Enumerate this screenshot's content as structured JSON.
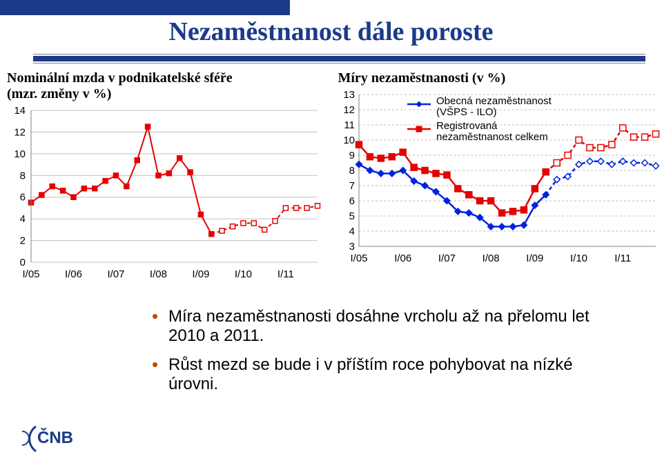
{
  "title": "Nezaměstnanost dále poroste",
  "left_chart": {
    "title_line1": "Nominální mzda v podnikatelské sféře",
    "title_line2": "(mzr. změny v %)",
    "type": "line",
    "background_color": "#ffffff",
    "grid_color": "#c0c0c0",
    "axis_color": "#808080",
    "series_color": "#e40000",
    "series_fill": "#ffffff",
    "marker_color": "#e40000",
    "marker_dashed_color": "#e40000",
    "ylim": [
      0,
      14
    ],
    "ytick_step": 2,
    "yticks": [
      0,
      2,
      4,
      6,
      8,
      10,
      12,
      14
    ],
    "x_labels": [
      "I/05",
      "I/06",
      "I/07",
      "I/08",
      "I/09",
      "I/10",
      "I/11"
    ],
    "solid_count": 18,
    "values": [
      5.5,
      6.2,
      7.0,
      6.6,
      6.0,
      6.8,
      6.8,
      7.5,
      8.0,
      7.0,
      9.4,
      12.5,
      8.0,
      8.2,
      9.6,
      8.3,
      4.4,
      2.6,
      2.9,
      3.3,
      3.6,
      3.6,
      3.0,
      3.8,
      5.0,
      5.0,
      5.0,
      5.2
    ],
    "label_fontsize": 15,
    "title_fontsize": 20,
    "line_width": 2,
    "marker_size": 3.5
  },
  "right_chart": {
    "title": "Míry nezaměstnanosti (v %)",
    "type": "line",
    "background_color": "#ffffff",
    "grid_color": "#c0c0c0",
    "axis_color": "#808080",
    "ylim": [
      3,
      13
    ],
    "ytick_step": 1,
    "yticks": [
      3,
      4,
      5,
      6,
      7,
      8,
      9,
      10,
      11,
      12,
      13
    ],
    "x_labels": [
      "I/05",
      "I/06",
      "I/07",
      "I/08",
      "I/09",
      "I/10",
      "I/11"
    ],
    "solid_count": 18,
    "series": [
      {
        "name": "Obecná nezaměstnanost (VŠPS - ILO)",
        "legend_lines": [
          "Obecná nezaměstnanost",
          "(VŠPS - ILO)"
        ],
        "color": "#0022dd",
        "marker": "diamond",
        "values": [
          8.4,
          8.0,
          7.8,
          7.8,
          8.0,
          7.3,
          7.0,
          6.6,
          6.0,
          5.3,
          5.2,
          4.9,
          4.3,
          4.3,
          4.3,
          4.4,
          5.7,
          6.4,
          7.4,
          7.6,
          8.4,
          8.6,
          8.6,
          8.4,
          8.6,
          8.5,
          8.5,
          8.3
        ]
      },
      {
        "name": "Registrovaná nezaměstnanost celkem",
        "legend_lines": [
          "Registrovaná",
          "nezaměstnanost celkem"
        ],
        "color": "#e40000",
        "marker": "square",
        "values": [
          9.7,
          8.9,
          8.8,
          8.9,
          9.2,
          8.2,
          8.0,
          7.8,
          7.7,
          6.8,
          6.4,
          6.0,
          6.0,
          5.2,
          5.3,
          5.4,
          6.8,
          7.9,
          8.5,
          9.0,
          10.0,
          9.5,
          9.5,
          9.7,
          10.8,
          10.2,
          10.2,
          10.4
        ]
      }
    ],
    "label_fontsize": 15,
    "title_fontsize": 20,
    "legend_fontsize": 15,
    "line_width": 2.5,
    "marker_size": 4.5
  },
  "bullets": [
    "Míra nezaměstnanosti dosáhne vrcholu až na přelomu let 2010 a 2011.",
    "Růst mezd se bude i v příštím roce pohybovat na nízké úrovni."
  ],
  "logo_text": "ČNB"
}
